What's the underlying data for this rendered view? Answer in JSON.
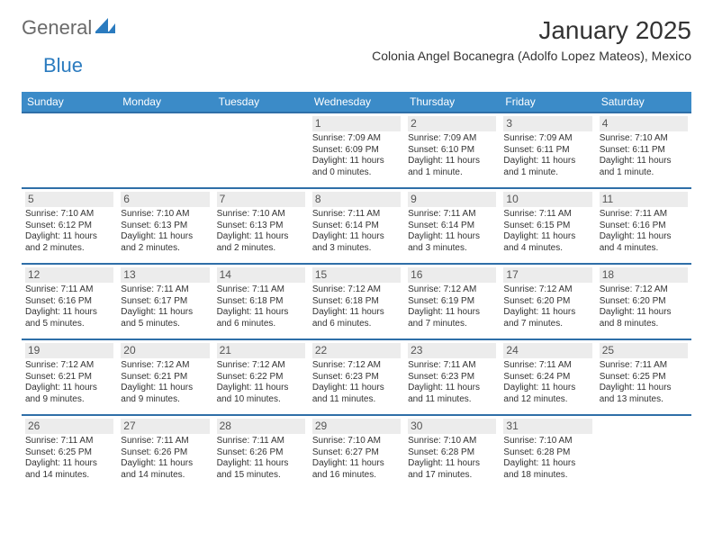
{
  "brand": {
    "text_general": "General",
    "text_blue": "Blue",
    "logo_color": "#2b7bbf"
  },
  "header": {
    "title": "January 2025",
    "location": "Colonia Angel Bocanegra (Adolfo Lopez Mateos), Mexico"
  },
  "style": {
    "header_bg": "#3b8bc8",
    "row_border": "#2f6fa8",
    "daynum_bg": "#ececec",
    "page_bg": "#ffffff",
    "text_color": "#333333",
    "day_label_fontsize": 12,
    "cell_fontsize": 10,
    "title_fontsize": 28,
    "location_fontsize": 14
  },
  "day_labels": [
    "Sunday",
    "Monday",
    "Tuesday",
    "Wednesday",
    "Thursday",
    "Friday",
    "Saturday"
  ],
  "weeks": [
    [
      null,
      null,
      null,
      {
        "n": "1",
        "sr": "Sunrise: 7:09 AM",
        "ss": "Sunset: 6:09 PM",
        "dl": "Daylight: 11 hours and 0 minutes."
      },
      {
        "n": "2",
        "sr": "Sunrise: 7:09 AM",
        "ss": "Sunset: 6:10 PM",
        "dl": "Daylight: 11 hours and 1 minute."
      },
      {
        "n": "3",
        "sr": "Sunrise: 7:09 AM",
        "ss": "Sunset: 6:11 PM",
        "dl": "Daylight: 11 hours and 1 minute."
      },
      {
        "n": "4",
        "sr": "Sunrise: 7:10 AM",
        "ss": "Sunset: 6:11 PM",
        "dl": "Daylight: 11 hours and 1 minute."
      }
    ],
    [
      {
        "n": "5",
        "sr": "Sunrise: 7:10 AM",
        "ss": "Sunset: 6:12 PM",
        "dl": "Daylight: 11 hours and 2 minutes."
      },
      {
        "n": "6",
        "sr": "Sunrise: 7:10 AM",
        "ss": "Sunset: 6:13 PM",
        "dl": "Daylight: 11 hours and 2 minutes."
      },
      {
        "n": "7",
        "sr": "Sunrise: 7:10 AM",
        "ss": "Sunset: 6:13 PM",
        "dl": "Daylight: 11 hours and 2 minutes."
      },
      {
        "n": "8",
        "sr": "Sunrise: 7:11 AM",
        "ss": "Sunset: 6:14 PM",
        "dl": "Daylight: 11 hours and 3 minutes."
      },
      {
        "n": "9",
        "sr": "Sunrise: 7:11 AM",
        "ss": "Sunset: 6:14 PM",
        "dl": "Daylight: 11 hours and 3 minutes."
      },
      {
        "n": "10",
        "sr": "Sunrise: 7:11 AM",
        "ss": "Sunset: 6:15 PM",
        "dl": "Daylight: 11 hours and 4 minutes."
      },
      {
        "n": "11",
        "sr": "Sunrise: 7:11 AM",
        "ss": "Sunset: 6:16 PM",
        "dl": "Daylight: 11 hours and 4 minutes."
      }
    ],
    [
      {
        "n": "12",
        "sr": "Sunrise: 7:11 AM",
        "ss": "Sunset: 6:16 PM",
        "dl": "Daylight: 11 hours and 5 minutes."
      },
      {
        "n": "13",
        "sr": "Sunrise: 7:11 AM",
        "ss": "Sunset: 6:17 PM",
        "dl": "Daylight: 11 hours and 5 minutes."
      },
      {
        "n": "14",
        "sr": "Sunrise: 7:11 AM",
        "ss": "Sunset: 6:18 PM",
        "dl": "Daylight: 11 hours and 6 minutes."
      },
      {
        "n": "15",
        "sr": "Sunrise: 7:12 AM",
        "ss": "Sunset: 6:18 PM",
        "dl": "Daylight: 11 hours and 6 minutes."
      },
      {
        "n": "16",
        "sr": "Sunrise: 7:12 AM",
        "ss": "Sunset: 6:19 PM",
        "dl": "Daylight: 11 hours and 7 minutes."
      },
      {
        "n": "17",
        "sr": "Sunrise: 7:12 AM",
        "ss": "Sunset: 6:20 PM",
        "dl": "Daylight: 11 hours and 7 minutes."
      },
      {
        "n": "18",
        "sr": "Sunrise: 7:12 AM",
        "ss": "Sunset: 6:20 PM",
        "dl": "Daylight: 11 hours and 8 minutes."
      }
    ],
    [
      {
        "n": "19",
        "sr": "Sunrise: 7:12 AM",
        "ss": "Sunset: 6:21 PM",
        "dl": "Daylight: 11 hours and 9 minutes."
      },
      {
        "n": "20",
        "sr": "Sunrise: 7:12 AM",
        "ss": "Sunset: 6:21 PM",
        "dl": "Daylight: 11 hours and 9 minutes."
      },
      {
        "n": "21",
        "sr": "Sunrise: 7:12 AM",
        "ss": "Sunset: 6:22 PM",
        "dl": "Daylight: 11 hours and 10 minutes."
      },
      {
        "n": "22",
        "sr": "Sunrise: 7:12 AM",
        "ss": "Sunset: 6:23 PM",
        "dl": "Daylight: 11 hours and 11 minutes."
      },
      {
        "n": "23",
        "sr": "Sunrise: 7:11 AM",
        "ss": "Sunset: 6:23 PM",
        "dl": "Daylight: 11 hours and 11 minutes."
      },
      {
        "n": "24",
        "sr": "Sunrise: 7:11 AM",
        "ss": "Sunset: 6:24 PM",
        "dl": "Daylight: 11 hours and 12 minutes."
      },
      {
        "n": "25",
        "sr": "Sunrise: 7:11 AM",
        "ss": "Sunset: 6:25 PM",
        "dl": "Daylight: 11 hours and 13 minutes."
      }
    ],
    [
      {
        "n": "26",
        "sr": "Sunrise: 7:11 AM",
        "ss": "Sunset: 6:25 PM",
        "dl": "Daylight: 11 hours and 14 minutes."
      },
      {
        "n": "27",
        "sr": "Sunrise: 7:11 AM",
        "ss": "Sunset: 6:26 PM",
        "dl": "Daylight: 11 hours and 14 minutes."
      },
      {
        "n": "28",
        "sr": "Sunrise: 7:11 AM",
        "ss": "Sunset: 6:26 PM",
        "dl": "Daylight: 11 hours and 15 minutes."
      },
      {
        "n": "29",
        "sr": "Sunrise: 7:10 AM",
        "ss": "Sunset: 6:27 PM",
        "dl": "Daylight: 11 hours and 16 minutes."
      },
      {
        "n": "30",
        "sr": "Sunrise: 7:10 AM",
        "ss": "Sunset: 6:28 PM",
        "dl": "Daylight: 11 hours and 17 minutes."
      },
      {
        "n": "31",
        "sr": "Sunrise: 7:10 AM",
        "ss": "Sunset: 6:28 PM",
        "dl": "Daylight: 11 hours and 18 minutes."
      },
      null
    ]
  ]
}
